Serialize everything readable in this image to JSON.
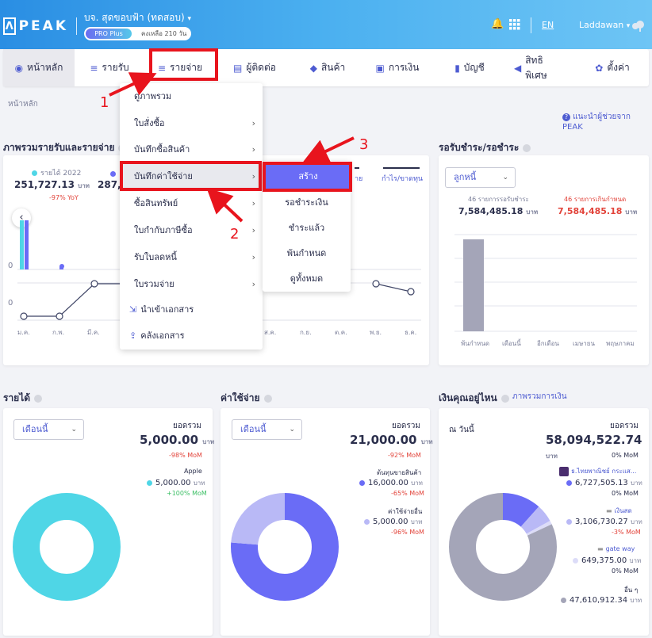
{
  "header": {
    "logo": "PEAK",
    "company": "บจ. สุดขอบฟ้า (ทดสอบ)",
    "plan": "PRO Plus",
    "days_left": "คงเหลือ 210 วัน",
    "language": "EN",
    "user": "Laddawan"
  },
  "nav": {
    "items": [
      {
        "label": "หน้าหลัก",
        "icon": "home-icon"
      },
      {
        "label": "รายรับ",
        "icon": "income-icon"
      },
      {
        "label": "รายจ่าย",
        "icon": "expense-icon"
      },
      {
        "label": "ผู้ติดต่อ",
        "icon": "contacts-icon"
      },
      {
        "label": "สินค้า",
        "icon": "box-icon"
      },
      {
        "label": "การเงิน",
        "icon": "money-icon"
      },
      {
        "label": "บัญชี",
        "icon": "book-icon"
      },
      {
        "label": "สิทธิพิเศษ",
        "icon": "megaphone-icon"
      },
      {
        "label": "ตั้งค่า",
        "icon": "gear-icon"
      }
    ]
  },
  "annotations": {
    "step1": "1",
    "step2": "2",
    "step3": "3"
  },
  "breadcrumb": "หน้าหลัก",
  "help_link": "แนะนำผู้ช่วยจาก PEAK",
  "overview": {
    "title": "ภาพรวมรายรับและรายจ่าย",
    "legend1": "รายได้ 2022",
    "value1": "251,727.13",
    "unit1": "บาท",
    "change1": "-97% YoY",
    "value2_partial": "287,9",
    "legend_right": "กำไร/ขาดทุน",
    "legend_right_partial": "าย",
    "zero_a": "0",
    "zero_b": "0",
    "months": [
      "ม.ค.",
      "ก.พ.",
      "มี.ค.",
      "ส.ค.",
      "ก.ย.",
      "ต.ค.",
      "พ.ย.",
      "ธ.ค."
    ]
  },
  "dropdown": {
    "items": [
      "ดูภาพรวม",
      "ใบสั่งซื้อ",
      "บันทึกซื้อสินค้า",
      "บันทึกค่าใช้จ่าย",
      "ซื้อสินทรัพย์",
      "ใบกำกับภาษีซื้อ",
      "รับใบลดหนี้",
      "ใบรวมจ่าย",
      "นำเข้าเอกสาร",
      "คลังเอกสาร"
    ]
  },
  "submenu": {
    "items": [
      "สร้าง",
      "รอชำระเงิน",
      "ชำระแล้ว",
      "พ้นกำหนด",
      "ดูทั้งหมด"
    ]
  },
  "receivables": {
    "title": "รอรับชำระ/รอชำระ",
    "select": "ลูกหนี้",
    "left_label": "46 รายการรอรับชำระ",
    "left_value": "7,584,485.18",
    "right_label": "46 รายการเกินกำหนด",
    "right_value": "7,584,485.18",
    "unit": "บาท",
    "x_labels": [
      "พ้นกำหนด",
      "เดือนนี้",
      "อีกเดือน",
      "เมษายน",
      "พฤษภาคม"
    ]
  },
  "income": {
    "title": "รายได้",
    "select": "เดือนนี้",
    "total_label": "ยอดรวม",
    "total": "5,000.00",
    "unit": "บาท",
    "change": "-98% MoM",
    "item_name": "Apple",
    "item_value": "5,000.00",
    "item_change": "+100% MoM"
  },
  "expense": {
    "title": "ค่าใช้จ่าย",
    "select": "เดือนนี้",
    "total_label": "ยอดรวม",
    "total": "21,000.00",
    "unit": "บาท",
    "change": "-92% MoM",
    "item1_name": "ต้นทุนขายสินค้า",
    "item1_value": "16,000.00",
    "item1_change": "-65% MoM",
    "item2_name": "ค่าใช้จ่ายอื่น",
    "item2_value": "5,000.00",
    "item2_change": "-96% MoM"
  },
  "cash": {
    "title": "เงินคุณอยู่ไหน",
    "link": "ภาพรวมการเงิน",
    "as_of": "ณ วันนี้",
    "total_label": "ยอดรวม",
    "total": "58,094,522.74",
    "unit": "บาท",
    "change": "0% MoM",
    "item1_name": "ธ.ไทยพาณิชย์ กระแส...",
    "item1_value": "6,727,505.13",
    "item1_change": "0% MoM",
    "item2_name": "เงินสด",
    "item2_value": "3,106,730.27",
    "item2_change": "-3% MoM",
    "item3_name": "gate way",
    "item3_value": "649,375.00",
    "item3_change": "0% MoM",
    "item4_name": "อื่น ๆ",
    "item4_value": "47,610,912.34"
  }
}
